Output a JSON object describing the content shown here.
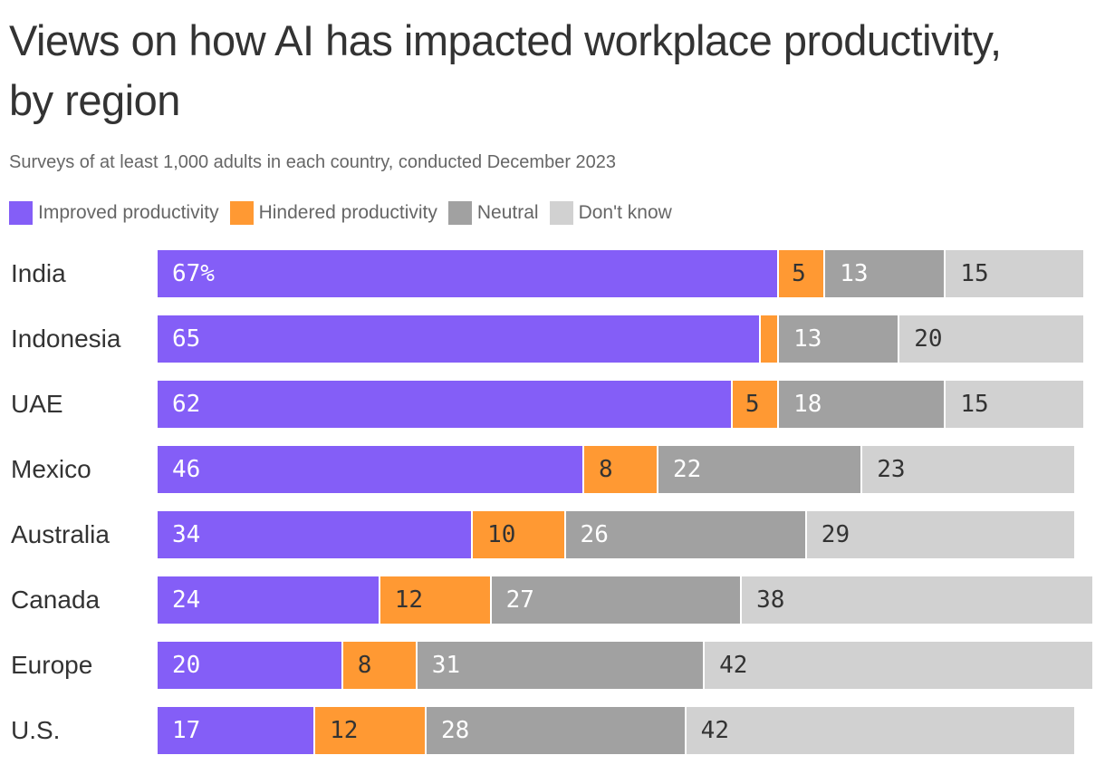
{
  "chart_data": {
    "type": "bar",
    "orientation": "horizontal",
    "stacked": true,
    "title": "Views on how AI has impacted workplace productivity, by region",
    "subtitle": "Surveys of at least 1,000 adults in each country, conducted December 2023",
    "legend_position": "top-left",
    "categories": [
      "India",
      "Indonesia",
      "UAE",
      "Mexico",
      "Australia",
      "Canada",
      "Europe",
      "U.S."
    ],
    "series": [
      {
        "name": "Improved productivity",
        "color": "#845EF7",
        "text_color": "#ffffff",
        "values": [
          67,
          65,
          62,
          46,
          34,
          24,
          20,
          17
        ]
      },
      {
        "name": "Hindered productivity",
        "color": "#FF9933",
        "text_color": "#333333",
        "values": [
          5,
          2,
          5,
          8,
          10,
          12,
          8,
          12
        ]
      },
      {
        "name": "Neutral",
        "color": "#A1A1A1",
        "text_color": "#ffffff",
        "values": [
          13,
          13,
          18,
          22,
          26,
          27,
          31,
          28
        ]
      },
      {
        "name": "Don't know",
        "color": "#D1D1D1",
        "text_color": "#333333",
        "values": [
          15,
          20,
          15,
          23,
          29,
          38,
          42,
          42
        ]
      }
    ],
    "hidden_labels": [
      [
        1,
        1
      ]
    ],
    "first_value_suffix": "%",
    "xlim": [
      0,
      100
    ],
    "grid": false
  }
}
